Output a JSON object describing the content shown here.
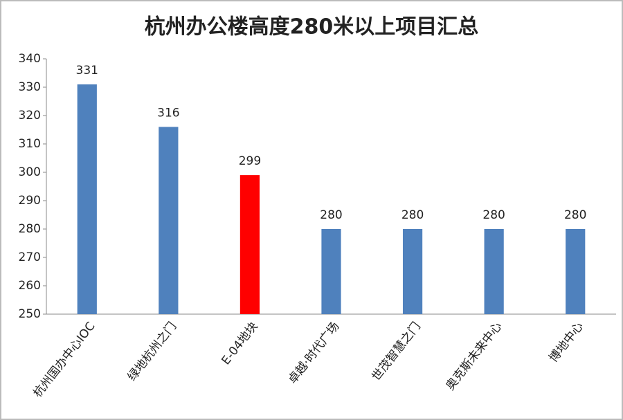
{
  "chart_data": {
    "type": "bar",
    "title": "杭州办公楼高度280米以上项目汇总",
    "categories": [
      "杭州国办中心IOC",
      "绿地杭州之门",
      "E-04地块",
      "卓越·时代广场",
      "世茂智慧之门",
      "奥克斯未来中心",
      "博地中心"
    ],
    "values": [
      331,
      316,
      299,
      280,
      280,
      280,
      280
    ],
    "colors": [
      "#4f81bd",
      "#4f81bd",
      "#ff0000",
      "#4f81bd",
      "#4f81bd",
      "#4f81bd",
      "#4f81bd"
    ],
    "ylim": [
      250,
      340
    ],
    "yticks": [
      250,
      260,
      270,
      280,
      290,
      300,
      310,
      320,
      330,
      340
    ],
    "grid": false
  }
}
